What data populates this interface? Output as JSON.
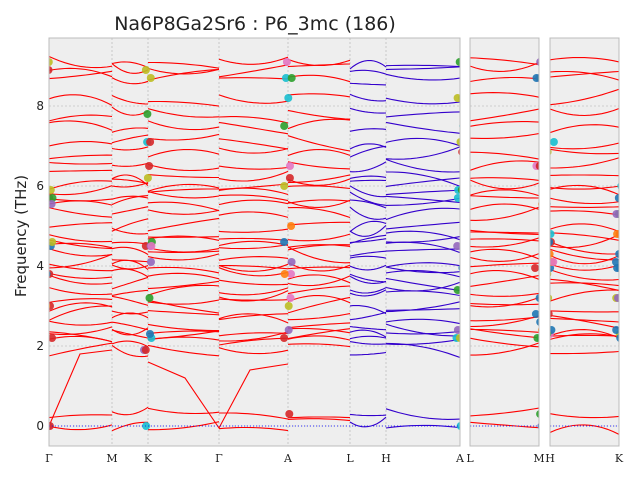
{
  "chart_data": {
    "type": "line",
    "title": "Na6P8Ga2Sr6 : P6_3mc (186)",
    "ylabel": "Frequency (THz)",
    "ylim": [
      -0.5,
      9.7
    ],
    "yticks": [
      0,
      2,
      4,
      6,
      8
    ],
    "grid": true,
    "background_color": "#eeeeee",
    "panels": [
      {
        "labels": [
          "Γ",
          "M",
          "K",
          "Γ",
          "A",
          "L",
          "H",
          "A"
        ],
        "colored_branches": [
          "Γ-M",
          "M-K",
          "K-Γ",
          "Γ-A",
          "A-L"
        ],
        "blue_branches": [
          "L-H",
          "H-A"
        ]
      },
      {
        "labels": [
          "L",
          "M"
        ]
      },
      {
        "labels": [
          "H",
          "K"
        ]
      }
    ],
    "series": [
      {
        "values": [
          0.0,
          0.3,
          1.9,
          2.2,
          2.3,
          2.4,
          2.6,
          2.8,
          3.0,
          3.2,
          3.4,
          3.6,
          3.8,
          3.95,
          4.1,
          4.3,
          4.5,
          4.6,
          4.8,
          5.0,
          5.3,
          5.55,
          5.7,
          5.9,
          6.0,
          6.2,
          6.5,
          6.85,
          7.1,
          7.5,
          7.8,
          8.2,
          8.7,
          8.9,
          9.1
        ]
      }
    ],
    "colors": {
      "band_red": "#ff0000",
      "band_blue": "#3300cc",
      "zero_line": "#0000ff",
      "markers": [
        "#2ca02c",
        "#d62728",
        "#1f77b4",
        "#ff7f0e",
        "#9467bd",
        "#e377c2",
        "#17becf",
        "#bcbd22"
      ]
    }
  }
}
